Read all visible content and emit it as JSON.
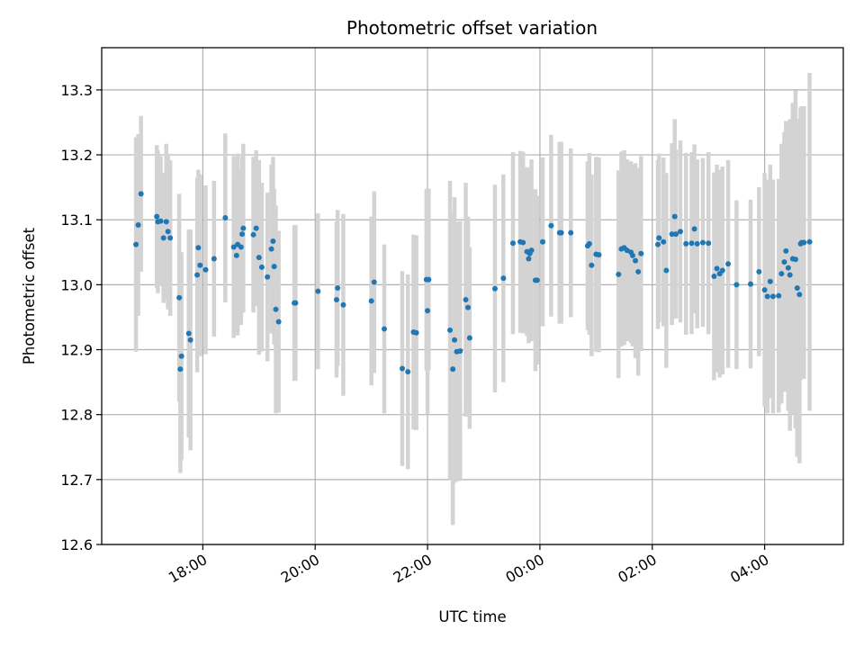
{
  "chart_data": {
    "type": "scatter",
    "title": "Photometric offset variation",
    "xlabel": "UTC time",
    "ylabel": "Photometric offset",
    "x_unit": "hours",
    "xlim": [
      16.2,
      29.4
    ],
    "ylim": [
      12.6,
      13.365
    ],
    "xticks": [
      {
        "value": 18,
        "label": "18:00"
      },
      {
        "value": 20,
        "label": "20:00"
      },
      {
        "value": 22,
        "label": "22:00"
      },
      {
        "value": 24,
        "label": "00:00"
      },
      {
        "value": 26,
        "label": "02:00"
      },
      {
        "value": 28,
        "label": "04:00"
      }
    ],
    "yticks": [
      12.6,
      12.7,
      12.8,
      12.9,
      13.0,
      13.1,
      13.2,
      13.3
    ],
    "grid": true,
    "colors": {
      "point": "#1f77b4",
      "errorbar": "#d3d3d3",
      "grid": "#b0b0b0"
    },
    "series": [
      {
        "x": [
          16.81,
          16.85,
          16.9,
          17.18,
          17.2,
          17.25,
          17.3,
          17.35,
          17.38,
          17.42,
          17.58,
          17.6,
          17.62,
          17.75,
          17.78,
          17.9,
          17.92,
          17.95,
          18.05,
          18.2,
          18.4,
          18.55,
          18.6,
          18.62,
          18.68,
          18.7,
          18.72,
          18.9,
          18.95,
          19.0,
          19.05,
          19.15,
          19.22,
          19.25,
          19.27,
          19.3,
          19.35,
          19.63,
          19.65,
          20.05,
          20.38,
          20.4,
          20.5,
          21.0,
          21.05,
          21.23,
          21.55,
          21.65,
          21.75,
          21.8,
          21.98,
          22.0,
          22.02,
          22.4,
          22.45,
          22.48,
          22.52,
          22.58,
          22.68,
          22.72,
          22.75,
          23.2,
          23.35,
          23.52,
          23.65,
          23.7,
          23.77,
          23.8,
          23.82,
          23.85,
          23.92,
          23.95,
          24.05,
          24.2,
          24.35,
          24.38,
          24.55,
          24.85,
          24.88,
          24.92,
          25.0,
          25.05,
          25.4,
          25.45,
          25.5,
          25.55,
          25.62,
          25.65,
          25.7,
          25.75,
          25.8,
          26.1,
          26.12,
          26.2,
          26.25,
          26.35,
          26.4,
          26.42,
          26.5,
          26.6,
          26.7,
          26.75,
          26.8,
          26.9,
          27.0,
          27.1,
          27.15,
          27.2,
          27.25,
          27.35,
          27.5,
          27.75,
          27.9,
          28.0,
          28.05,
          28.1,
          28.15,
          28.25,
          28.3,
          28.35,
          28.38,
          28.42,
          28.45,
          28.5,
          28.55,
          28.58,
          28.62,
          28.64,
          28.66,
          28.7,
          28.8
        ],
        "y": [
          13.062,
          13.092,
          13.14,
          13.105,
          13.097,
          13.098,
          13.072,
          13.097,
          13.082,
          13.072,
          12.98,
          12.87,
          12.89,
          12.925,
          12.915,
          13.015,
          13.057,
          13.03,
          13.023,
          13.04,
          13.103,
          13.058,
          13.045,
          13.062,
          13.058,
          13.078,
          13.087,
          13.077,
          13.087,
          13.042,
          13.027,
          13.012,
          13.055,
          13.067,
          13.028,
          12.962,
          12.943,
          12.972,
          12.972,
          12.99,
          12.977,
          12.995,
          12.969,
          12.975,
          13.004,
          12.932,
          12.871,
          12.866,
          12.927,
          12.926,
          13.008,
          12.96,
          13.008,
          12.93,
          12.87,
          12.915,
          12.897,
          12.898,
          12.977,
          12.965,
          12.918,
          12.994,
          13.01,
          13.064,
          13.066,
          13.065,
          13.051,
          13.04,
          13.048,
          13.053,
          13.007,
          13.007,
          13.066,
          13.091,
          13.08,
          13.08,
          13.08,
          13.06,
          13.063,
          13.03,
          13.047,
          13.046,
          13.016,
          13.055,
          13.057,
          13.053,
          13.05,
          13.045,
          13.037,
          13.02,
          13.048,
          13.062,
          13.072,
          13.066,
          13.022,
          13.078,
          13.105,
          13.078,
          13.082,
          13.063,
          13.064,
          13.086,
          13.063,
          13.065,
          13.064,
          13.013,
          13.025,
          13.017,
          13.022,
          13.032,
          13.0,
          13.001,
          13.02,
          12.992,
          12.982,
          13.005,
          12.982,
          12.983,
          13.017,
          13.035,
          13.052,
          13.026,
          13.015,
          13.04,
          13.039,
          12.995,
          12.985,
          13.063,
          13.065,
          13.065,
          13.066
        ],
        "yerr": [
          0.165,
          0.14,
          0.12,
          0.11,
          0.11,
          0.1,
          0.1,
          0.12,
          0.12,
          0.12,
          0.16,
          0.16,
          0.16,
          0.16,
          0.17,
          0.15,
          0.12,
          0.14,
          0.13,
          0.12,
          0.13,
          0.14,
          0.12,
          0.14,
          0.12,
          0.12,
          0.13,
          0.12,
          0.12,
          0.15,
          0.13,
          0.13,
          0.13,
          0.13,
          0.12,
          0.16,
          0.14,
          0.12,
          0.12,
          0.12,
          0.12,
          0.12,
          0.14,
          0.13,
          0.14,
          0.13,
          0.15,
          0.15,
          0.15,
          0.15,
          0.14,
          0.16,
          0.14,
          0.23,
          0.24,
          0.22,
          0.2,
          0.2,
          0.18,
          0.14,
          0.14,
          0.16,
          0.16,
          0.14,
          0.14,
          0.14,
          0.13,
          0.13,
          0.13,
          0.14,
          0.14,
          0.13,
          0.13,
          0.14,
          0.14,
          0.14,
          0.13,
          0.13,
          0.14,
          0.14,
          0.15,
          0.15,
          0.16,
          0.15,
          0.15,
          0.14,
          0.14,
          0.14,
          0.15,
          0.16,
          0.15,
          0.13,
          0.13,
          0.13,
          0.15,
          0.14,
          0.15,
          0.13,
          0.14,
          0.14,
          0.14,
          0.13,
          0.13,
          0.13,
          0.14,
          0.16,
          0.16,
          0.16,
          0.16,
          0.16,
          0.13,
          0.13,
          0.13,
          0.18,
          0.18,
          0.18,
          0.18,
          0.18,
          0.2,
          0.2,
          0.2,
          0.22,
          0.24,
          0.24,
          0.26,
          0.26,
          0.26,
          0.21,
          0.21,
          0.21,
          0.26
        ]
      }
    ]
  }
}
